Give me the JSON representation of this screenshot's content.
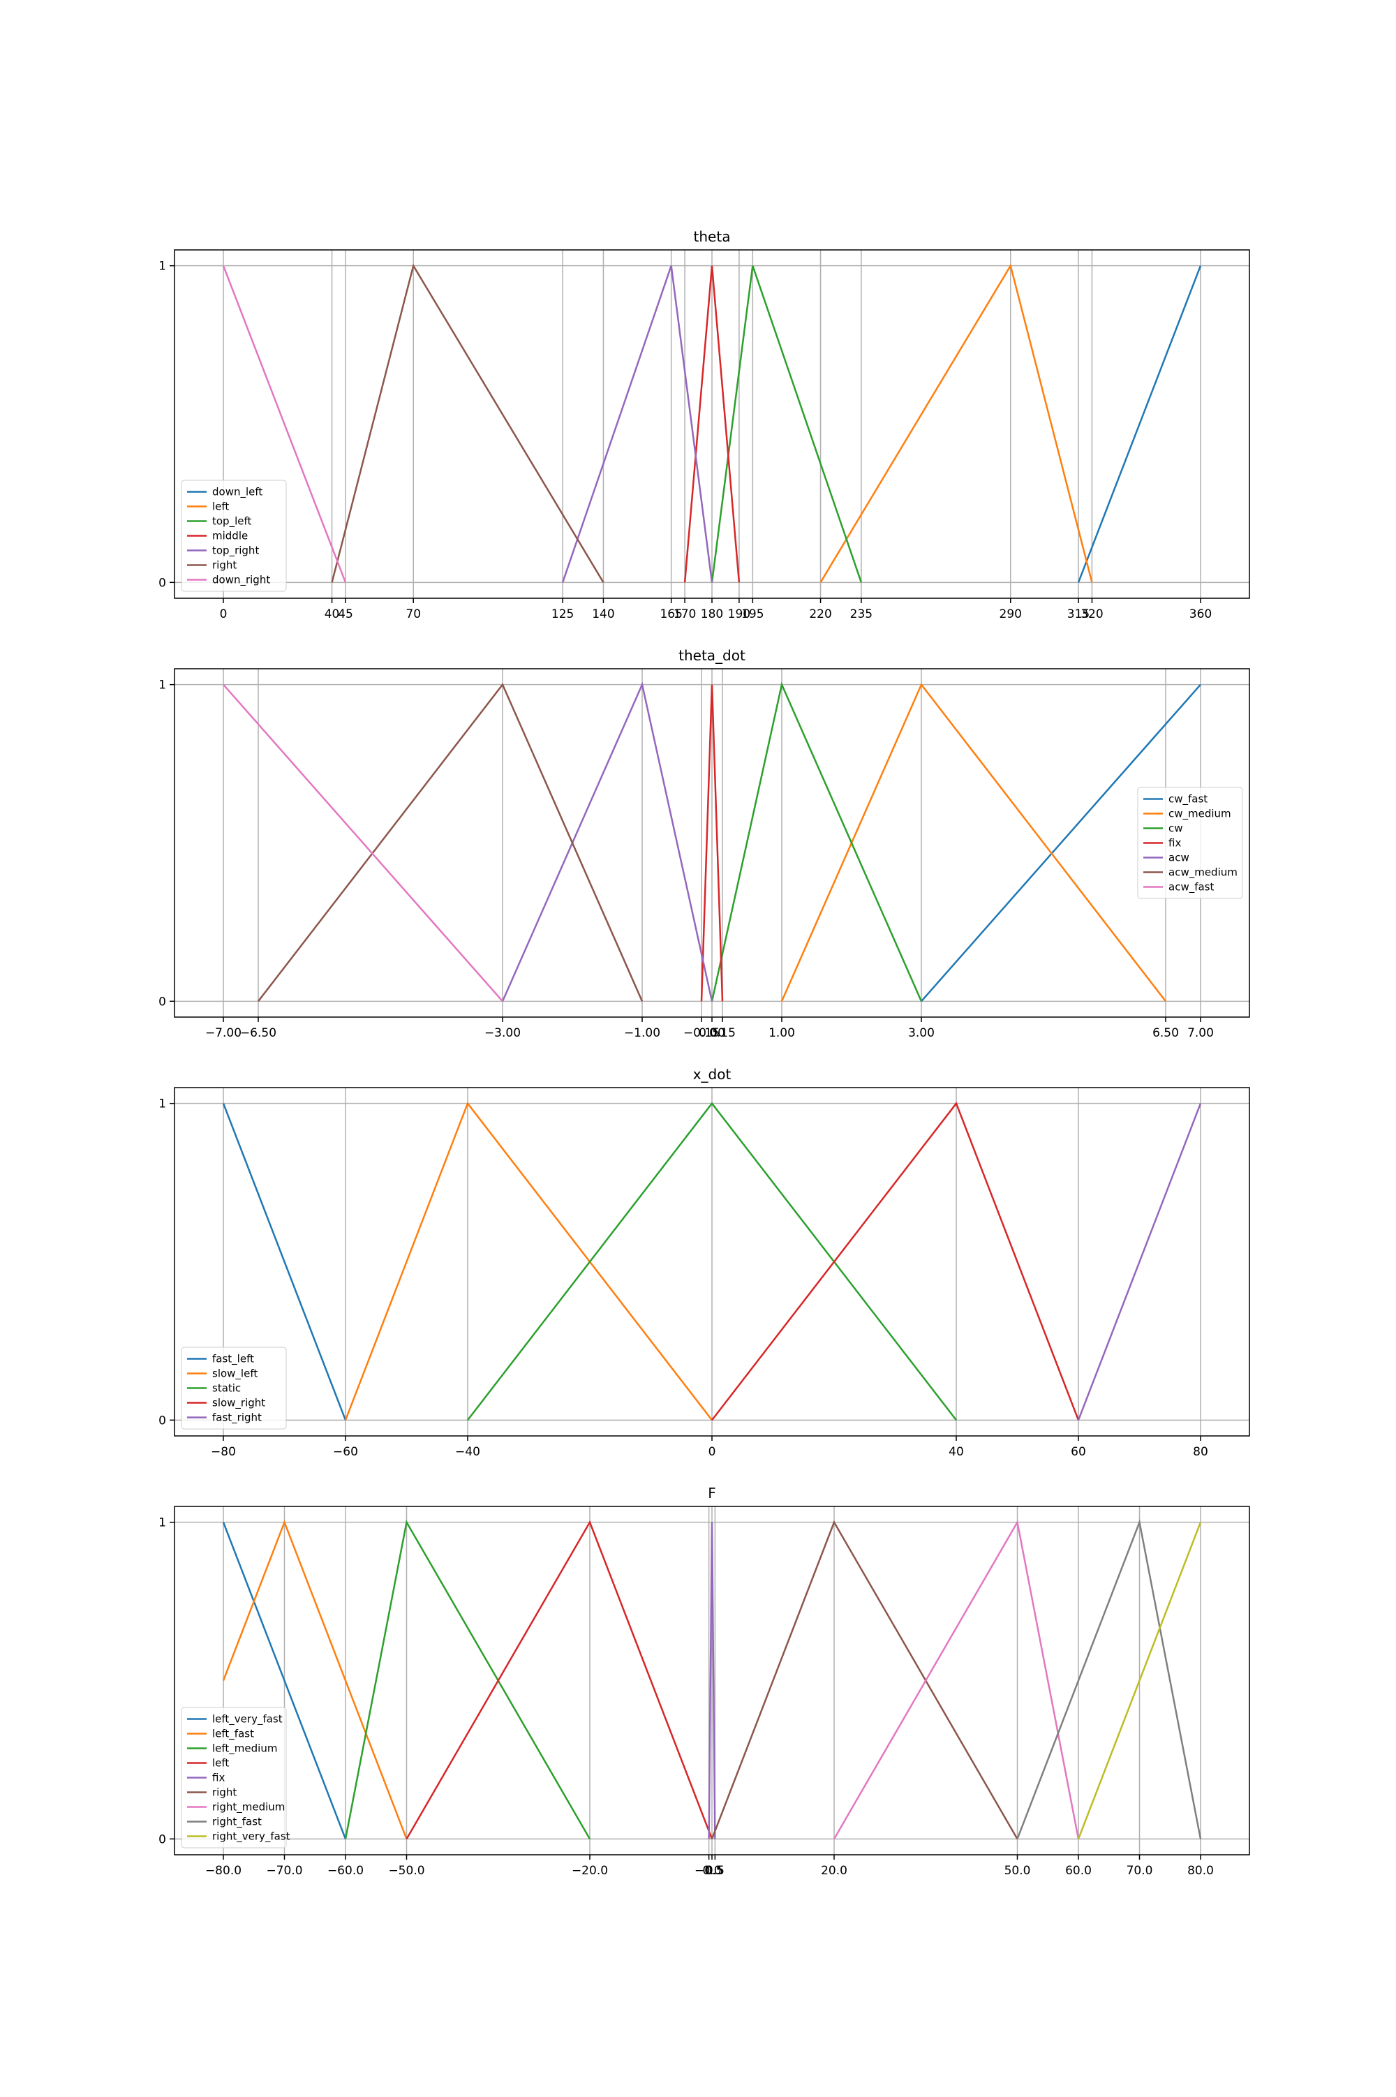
{
  "chart_data": [
    {
      "type": "line",
      "title": "theta",
      "xlim": [
        -18,
        378
      ],
      "ylim": [
        -0.05,
        1.05
      ],
      "grid": true,
      "legend_loc": "lower left",
      "xticks": [
        0,
        40,
        45,
        70,
        125,
        140,
        165,
        170,
        180,
        190,
        195,
        220,
        235,
        290,
        315,
        320,
        360
      ],
      "yticks": [
        0,
        1
      ],
      "series": [
        {
          "name": "down_left",
          "color": "#1f77b4",
          "x": [
            315,
            360
          ],
          "values": [
            0,
            1
          ]
        },
        {
          "name": "left",
          "color": "#ff7f0e",
          "x": [
            220,
            290,
            320
          ],
          "values": [
            0,
            1,
            0
          ]
        },
        {
          "name": "top_left",
          "color": "#2ca02c",
          "x": [
            180,
            195,
            235
          ],
          "values": [
            0,
            1,
            0
          ]
        },
        {
          "name": "middle",
          "color": "#d62728",
          "x": [
            170,
            180,
            190
          ],
          "values": [
            0,
            1,
            0
          ]
        },
        {
          "name": "top_right",
          "color": "#9467bd",
          "x": [
            125,
            165,
            180
          ],
          "values": [
            0,
            1,
            0
          ]
        },
        {
          "name": "right",
          "color": "#8c564b",
          "x": [
            40,
            70,
            140
          ],
          "values": [
            0,
            1,
            0
          ]
        },
        {
          "name": "down_right",
          "color": "#e377c2",
          "x": [
            0,
            45
          ],
          "values": [
            1,
            0
          ]
        }
      ]
    },
    {
      "type": "line",
      "title": "theta_dot",
      "xlim": [
        -7.7,
        7.7
      ],
      "ylim": [
        -0.05,
        1.05
      ],
      "grid": true,
      "legend_loc": "center right",
      "xticks": [
        {
          "value": -7,
          "label": "−7.00"
        },
        {
          "value": -6.5,
          "label": "−6.50"
        },
        {
          "value": -3,
          "label": "−3.00"
        },
        {
          "value": -1,
          "label": "−1.00"
        },
        {
          "value": -0.15,
          "label": "−0.15"
        },
        {
          "value": 0,
          "label": "0.00"
        },
        {
          "value": 0.15,
          "label": "0.15"
        },
        {
          "value": 1,
          "label": "1.00"
        },
        {
          "value": 3,
          "label": "3.00"
        },
        {
          "value": 6.5,
          "label": "6.50"
        },
        {
          "value": 7,
          "label": "7.00"
        }
      ],
      "yticks": [
        0,
        1
      ],
      "series": [
        {
          "name": "cw_fast",
          "color": "#1f77b4",
          "x": [
            3,
            7
          ],
          "values": [
            0,
            1
          ]
        },
        {
          "name": "cw_medium",
          "color": "#ff7f0e",
          "x": [
            1,
            3,
            6.5
          ],
          "values": [
            0,
            1,
            0
          ]
        },
        {
          "name": "cw",
          "color": "#2ca02c",
          "x": [
            0,
            1,
            3
          ],
          "values": [
            0,
            1,
            0
          ]
        },
        {
          "name": "fix",
          "color": "#d62728",
          "x": [
            -0.15,
            0,
            0.15
          ],
          "values": [
            0,
            1,
            0
          ]
        },
        {
          "name": "acw",
          "color": "#9467bd",
          "x": [
            -3,
            -1,
            0
          ],
          "values": [
            0,
            1,
            0
          ]
        },
        {
          "name": "acw_medium",
          "color": "#8c564b",
          "x": [
            -6.5,
            -3,
            -1
          ],
          "values": [
            0,
            1,
            0
          ]
        },
        {
          "name": "acw_fast",
          "color": "#e377c2",
          "x": [
            -7,
            -3
          ],
          "values": [
            1,
            0
          ]
        }
      ]
    },
    {
      "type": "line",
      "title": "x_dot",
      "xlim": [
        -88,
        88
      ],
      "ylim": [
        -0.05,
        1.05
      ],
      "grid": true,
      "legend_loc": "lower left",
      "xticks": [
        {
          "value": -80,
          "label": "−80"
        },
        {
          "value": -60,
          "label": "−60"
        },
        {
          "value": -40,
          "label": "−40"
        },
        0,
        40,
        60,
        80
      ],
      "yticks": [
        0,
        1
      ],
      "series": [
        {
          "name": "fast_left",
          "color": "#1f77b4",
          "x": [
            -80,
            -60
          ],
          "values": [
            1,
            0
          ]
        },
        {
          "name": "slow_left",
          "color": "#ff7f0e",
          "x": [
            -60,
            -40,
            0
          ],
          "values": [
            0,
            1,
            0
          ]
        },
        {
          "name": "static",
          "color": "#2ca02c",
          "x": [
            -40,
            0,
            40
          ],
          "values": [
            0,
            1,
            0
          ]
        },
        {
          "name": "slow_right",
          "color": "#d62728",
          "x": [
            0,
            40,
            60
          ],
          "values": [
            0,
            1,
            0
          ]
        },
        {
          "name": "fast_right",
          "color": "#9467bd",
          "x": [
            60,
            80
          ],
          "values": [
            0,
            1
          ]
        }
      ]
    },
    {
      "type": "line",
      "title": "F",
      "xlim": [
        -88,
        88
      ],
      "ylim": [
        -0.05,
        1.05
      ],
      "grid": true,
      "legend_loc": "lower left",
      "xticks": [
        {
          "value": -80,
          "label": "−80.0"
        },
        {
          "value": -70,
          "label": "−70.0"
        },
        {
          "value": -60,
          "label": "−60.0"
        },
        {
          "value": -50,
          "label": "−50.0"
        },
        {
          "value": -20,
          "label": "−20.0"
        },
        {
          "value": -0.5,
          "label": "−0.5"
        },
        {
          "value": 0,
          "label": "0.0"
        },
        {
          "value": 0.5,
          "label": "0.5"
        },
        {
          "value": 20,
          "label": "20.0"
        },
        {
          "value": 50,
          "label": "50.0"
        },
        {
          "value": 60,
          "label": "60.0"
        },
        {
          "value": 70,
          "label": "70.0"
        },
        {
          "value": 80,
          "label": "80.0"
        }
      ],
      "yticks": [
        0,
        1
      ],
      "series": [
        {
          "name": "left_very_fast",
          "color": "#1f77b4",
          "x": [
            -80,
            -60
          ],
          "values": [
            1,
            0
          ]
        },
        {
          "name": "left_fast",
          "color": "#ff7f0e",
          "x": [
            -80,
            -70,
            -50
          ],
          "values": [
            0.5,
            1,
            0
          ]
        },
        {
          "name": "left_medium",
          "color": "#2ca02c",
          "x": [
            -60,
            -50,
            -20
          ],
          "values": [
            0,
            1,
            0
          ]
        },
        {
          "name": "left",
          "color": "#d62728",
          "x": [
            -50,
            -20,
            0
          ],
          "values": [
            0,
            1,
            0
          ]
        },
        {
          "name": "fix",
          "color": "#9467bd",
          "x": [
            -0.5,
            0,
            0.5
          ],
          "values": [
            0,
            1,
            0
          ]
        },
        {
          "name": "right",
          "color": "#8c564b",
          "x": [
            0,
            20,
            50
          ],
          "values": [
            0,
            1,
            0
          ]
        },
        {
          "name": "right_medium",
          "color": "#e377c2",
          "x": [
            20,
            50,
            60
          ],
          "values": [
            0,
            1,
            0
          ]
        },
        {
          "name": "right_fast",
          "color": "#7f7f7f",
          "x": [
            50,
            70,
            80
          ],
          "values": [
            0,
            1,
            0
          ]
        },
        {
          "name": "right_very_fast",
          "color": "#bcbd22",
          "x": [
            60,
            80
          ],
          "values": [
            0,
            1
          ]
        }
      ]
    }
  ]
}
